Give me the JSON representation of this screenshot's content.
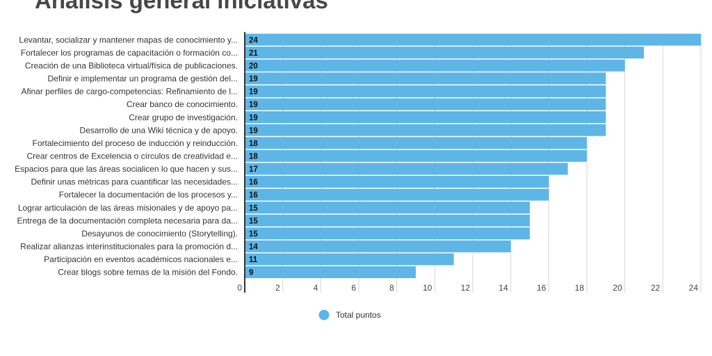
{
  "chart_data": {
    "type": "bar",
    "orientation": "horizontal",
    "title": "Análisis general iniciativas",
    "categories": [
      "Levantar, socializar y mantener mapas de conocimiento y...",
      "Fortalecer los programas de capacitación o formación co...",
      "Creación de una Biblioteca virtual/física de publicaciones.",
      "Definir e implementar un programa de gestión del...",
      "Afinar perfiles de cargo-competencias: Refinamiento de l...",
      "Crear banco de conocimiento.",
      "Crear grupo de investigación.",
      "Desarrollo de una Wiki técnica y de apoyo.",
      "Fortalecimiento del proceso de inducción y reinducción.",
      "Crear centros de Excelencia o círculos de creatividad e...",
      "Espacios para que las áreas socialicen lo que hacen y sus...",
      "Definir unas métricas para cuantificar las necesidades...",
      "Fortalecer la documentación de los procesos y...",
      "Lograr articulación de las áreas misionales y de apoyo pa...",
      "Entrega de la documentación completa necesaria para da...",
      "Desayunos de conocimiento (Storytelling).",
      "Realizar alianzas interinstitucionales para la promoción d...",
      "Participación en eventos académicos nacionales e...",
      "Crear blogs sobre temas de la misión del Fondo."
    ],
    "series": [
      {
        "name": "Total puntos",
        "color": "#5eb6e6",
        "values": [
          24,
          21,
          20,
          19,
          19,
          19,
          19,
          19,
          18,
          18,
          17,
          16,
          16,
          15,
          15,
          15,
          14,
          11,
          9
        ]
      }
    ],
    "xlim": [
      0,
      24
    ],
    "xticks": [
      0,
      2,
      4,
      6,
      8,
      10,
      12,
      14,
      16,
      18,
      20,
      22,
      24
    ],
    "grid": true,
    "data_labels": true,
    "legend": "bottom"
  }
}
